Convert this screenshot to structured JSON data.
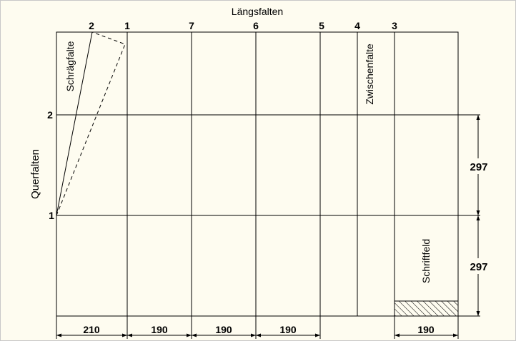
{
  "title": "Längsfalten",
  "longitudinal_fold_numbers": [
    "2",
    "1",
    "7",
    "6",
    "5",
    "4",
    "3"
  ],
  "cross_fold_label": "Querfalten",
  "cross_fold_numbers": [
    "2",
    "1"
  ],
  "diagonal_fold_label": "Schrägfalte",
  "intermediate_fold_label": "Zwischenfalte",
  "title_block_label": "Schriftfeld",
  "horizontal_dimensions": [
    "210",
    "190",
    "190",
    "190",
    "190"
  ],
  "vertical_dimensions": [
    "297",
    "297"
  ],
  "colors": {
    "background": "#fefcf0",
    "lines": "#000000",
    "border": "#c8c8c8"
  }
}
